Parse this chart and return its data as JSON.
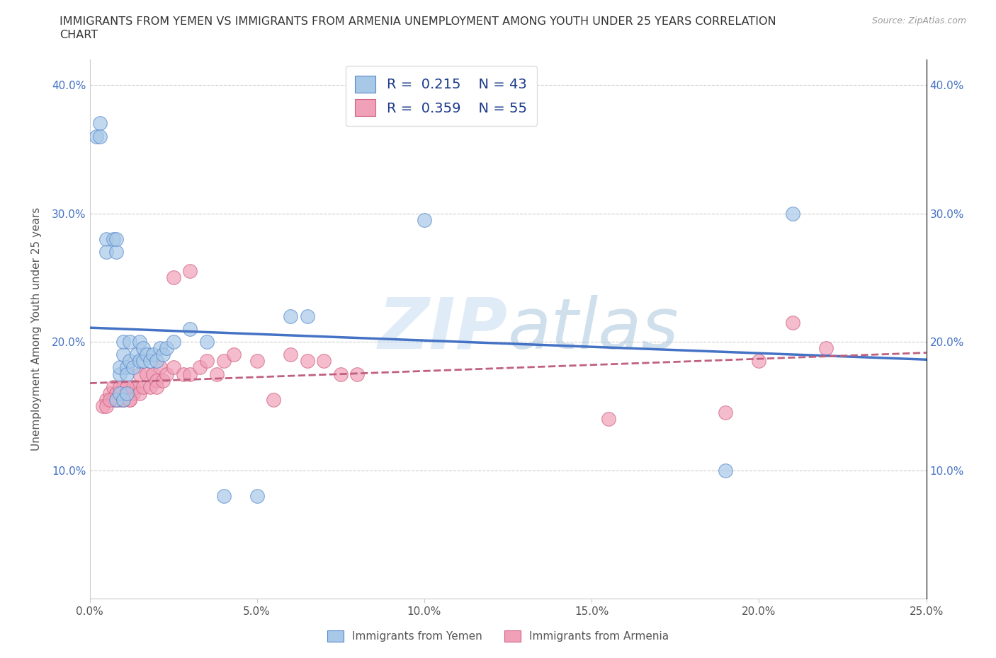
{
  "title_line1": "IMMIGRANTS FROM YEMEN VS IMMIGRANTS FROM ARMENIA UNEMPLOYMENT AMONG YOUTH UNDER 25 YEARS CORRELATION",
  "title_line2": "CHART",
  "source": "Source: ZipAtlas.com",
  "ylabel": "Unemployment Among Youth under 25 years",
  "watermark": "ZIPatlas",
  "label1": "Immigrants from Yemen",
  "label2": "Immigrants from Armenia",
  "color1": "#A8C8E8",
  "color2": "#F0A0B8",
  "edge_color1": "#5588CC",
  "edge_color2": "#D06080",
  "line_color1": "#4472C4",
  "line_color2": "#C06080",
  "xlim": [
    0.0,
    0.25
  ],
  "ylim": [
    0.0,
    0.42
  ],
  "xticks": [
    0.0,
    0.05,
    0.1,
    0.15,
    0.2,
    0.25
  ],
  "yticks": [
    0.0,
    0.1,
    0.2,
    0.3,
    0.4
  ],
  "ytick_labels": [
    "",
    "10.0%",
    "20.0%",
    "30.0%",
    "40.0%"
  ],
  "xtick_labels": [
    "0.0%",
    "5.0%",
    "10.0%",
    "15.0%",
    "20.0%",
    "25.0%"
  ],
  "yemen_x": [
    0.005,
    0.005,
    0.007,
    0.008,
    0.008,
    0.009,
    0.009,
    0.01,
    0.01,
    0.011,
    0.011,
    0.012,
    0.012,
    0.013,
    0.014,
    0.015,
    0.015,
    0.016,
    0.016,
    0.017,
    0.018,
    0.019,
    0.02,
    0.021,
    0.022,
    0.023,
    0.025,
    0.03,
    0.035,
    0.04,
    0.05,
    0.06,
    0.065,
    0.008,
    0.009,
    0.01,
    0.011,
    0.002,
    0.003,
    0.003,
    0.1,
    0.19,
    0.21
  ],
  "yemen_y": [
    0.28,
    0.27,
    0.28,
    0.27,
    0.28,
    0.175,
    0.18,
    0.19,
    0.2,
    0.18,
    0.175,
    0.185,
    0.2,
    0.18,
    0.19,
    0.185,
    0.2,
    0.185,
    0.195,
    0.19,
    0.185,
    0.19,
    0.185,
    0.195,
    0.19,
    0.195,
    0.2,
    0.21,
    0.2,
    0.08,
    0.08,
    0.22,
    0.22,
    0.155,
    0.16,
    0.155,
    0.16,
    0.36,
    0.37,
    0.36,
    0.295,
    0.1,
    0.3
  ],
  "armenia_x": [
    0.005,
    0.006,
    0.007,
    0.007,
    0.008,
    0.008,
    0.009,
    0.01,
    0.01,
    0.011,
    0.012,
    0.013,
    0.013,
    0.014,
    0.015,
    0.015,
    0.016,
    0.017,
    0.018,
    0.019,
    0.02,
    0.02,
    0.021,
    0.022,
    0.023,
    0.025,
    0.028,
    0.03,
    0.033,
    0.035,
    0.038,
    0.04,
    0.043,
    0.05,
    0.055,
    0.06,
    0.065,
    0.07,
    0.075,
    0.08,
    0.025,
    0.03,
    0.008,
    0.009,
    0.01,
    0.011,
    0.012,
    0.004,
    0.005,
    0.006,
    0.155,
    0.19,
    0.2,
    0.21,
    0.22
  ],
  "armenia_y": [
    0.155,
    0.16,
    0.155,
    0.165,
    0.155,
    0.16,
    0.155,
    0.155,
    0.165,
    0.16,
    0.155,
    0.165,
    0.16,
    0.165,
    0.16,
    0.175,
    0.165,
    0.175,
    0.165,
    0.175,
    0.17,
    0.165,
    0.18,
    0.17,
    0.175,
    0.18,
    0.175,
    0.175,
    0.18,
    0.185,
    0.175,
    0.185,
    0.19,
    0.185,
    0.155,
    0.19,
    0.185,
    0.185,
    0.175,
    0.175,
    0.25,
    0.255,
    0.155,
    0.165,
    0.155,
    0.165,
    0.155,
    0.15,
    0.15,
    0.155,
    0.14,
    0.145,
    0.185,
    0.215,
    0.195
  ]
}
